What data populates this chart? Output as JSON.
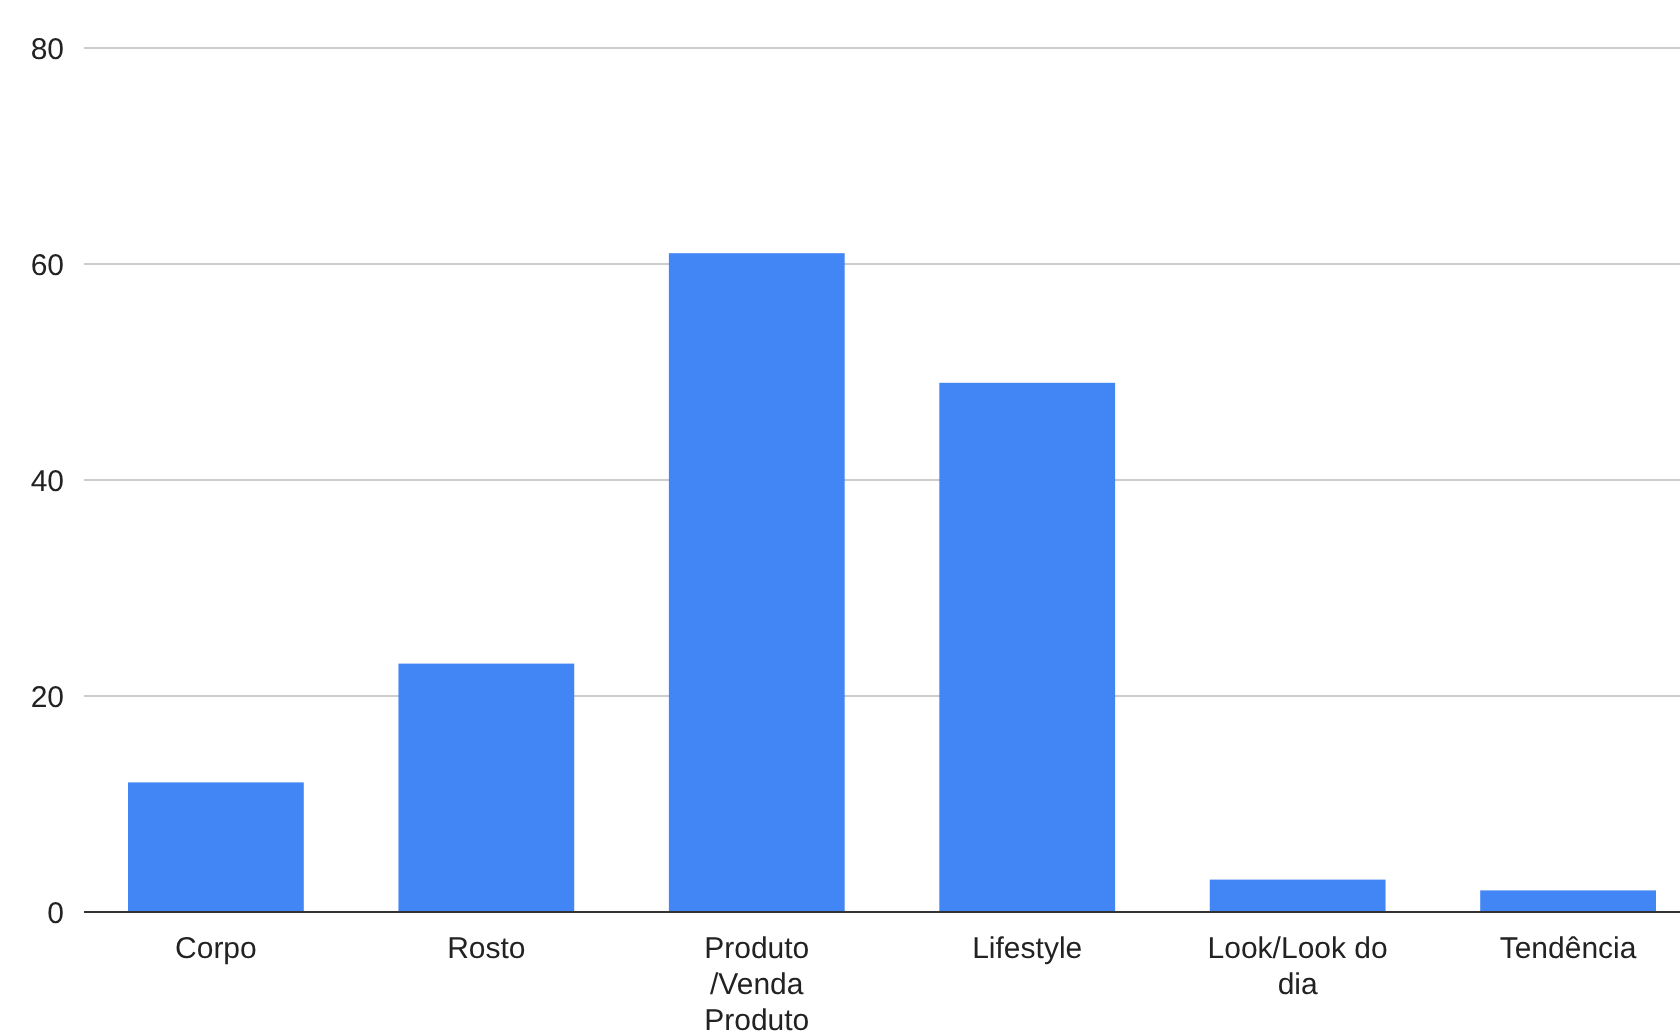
{
  "chart_data": {
    "type": "bar",
    "categories": [
      "Corpo",
      "Rosto",
      "Produto /Venda Produto",
      "Lifestyle",
      "Look/Look do dia",
      "Tendência"
    ],
    "values": [
      12,
      23,
      61,
      49,
      3,
      2
    ],
    "color": "#4285f4",
    "ylim": [
      0,
      80
    ],
    "yticks": [
      0,
      20,
      40,
      60,
      80
    ],
    "grid": "y"
  }
}
